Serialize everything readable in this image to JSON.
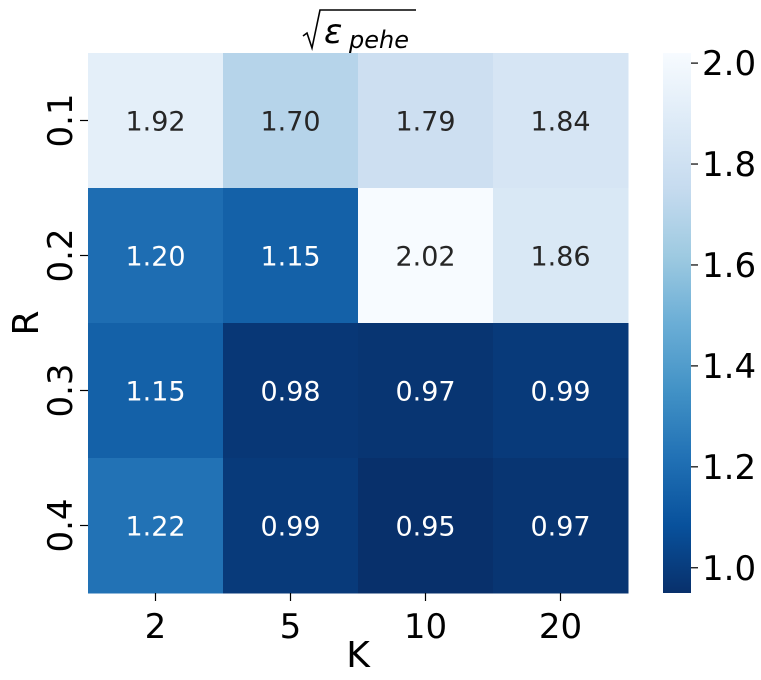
{
  "chart_data": {
    "type": "heatmap",
    "title": {
      "symbol": "ε",
      "subscript": "pehe"
    },
    "xlabel": "K",
    "ylabel": "R",
    "x_categories": [
      "2",
      "5",
      "10",
      "20"
    ],
    "y_categories": [
      "0.1",
      "0.2",
      "0.3",
      "0.4"
    ],
    "values": [
      [
        1.92,
        1.7,
        1.79,
        1.84
      ],
      [
        1.2,
        1.15,
        2.02,
        1.86
      ],
      [
        1.15,
        0.98,
        0.97,
        0.99
      ],
      [
        1.22,
        0.99,
        0.95,
        0.97
      ]
    ],
    "value_labels": [
      [
        "1.92",
        "1.70",
        "1.79",
        "1.84"
      ],
      [
        "1.20",
        "1.15",
        "2.02",
        "1.86"
      ],
      [
        "1.15",
        "0.98",
        "0.97",
        "0.99"
      ],
      [
        "1.22",
        "0.99",
        "0.95",
        "0.97"
      ]
    ],
    "colormap": "Blues_r",
    "vmin": 0.95,
    "vmax": 2.02,
    "colorbar": {
      "ticks": [
        1.0,
        1.2,
        1.4,
        1.6,
        1.8,
        2.0
      ],
      "tick_labels": [
        "1.0",
        "1.2",
        "1.4",
        "1.6",
        "1.8",
        "2.0"
      ],
      "placement": "right"
    },
    "annotation_colors": {
      "dark_text": "#262626",
      "light_text": "#ffffff"
    }
  }
}
